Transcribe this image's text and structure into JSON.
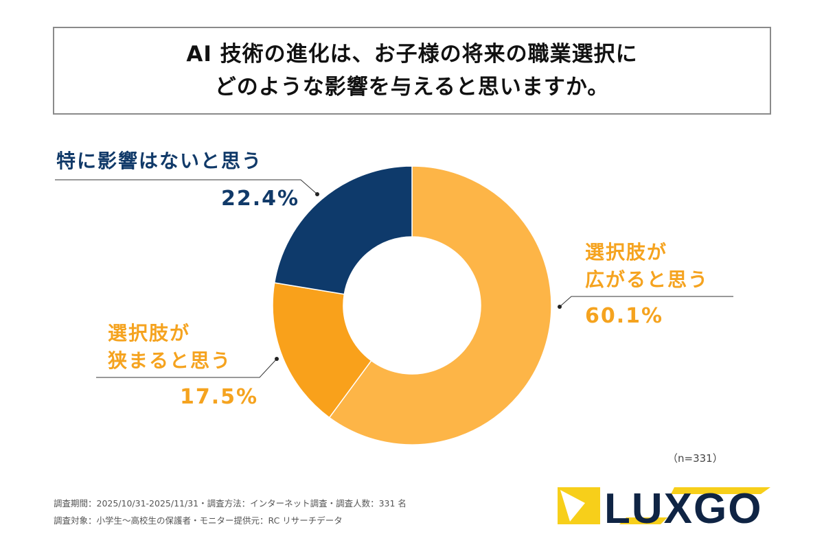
{
  "title": {
    "line1": "AI 技術の進化は、お子様の将来の職業選択に",
    "line2": "どのような影響を与えると思いますか。"
  },
  "chart_data": {
    "type": "pie",
    "donut": true,
    "slices": [
      {
        "label": "選択肢が広がると思う",
        "label_lines": [
          "選択肢が",
          "広がると思う"
        ],
        "value": 60.1,
        "display": "60.1%",
        "color": "#fdb547"
      },
      {
        "label": "選択肢が狭まると思う",
        "label_lines": [
          "選択肢が",
          "狭まると思う"
        ],
        "value": 17.5,
        "display": "17.5%",
        "color": "#f9a11b"
      },
      {
        "label": "特に影響はないと思う",
        "label_lines": [
          "特に影響はないと思う"
        ],
        "value": 22.4,
        "display": "22.4%",
        "color": "#0e3a6b"
      }
    ],
    "label_colors": {
      "orange": "#f5a31f",
      "navy": "#113a69"
    },
    "sample": "（n=331）"
  },
  "footer": {
    "line1": "調査期間：2025/10/31-2025/11/31・調査方法：インターネット調査・調査人数：331 名",
    "line2": "調査対象：小学生～高校生の保護者・モニター提供元：RC リサーチデータ"
  },
  "logo": {
    "text": "LUXGO",
    "colors": {
      "yellow": "#f7cf1a",
      "navy": "#0f2444"
    }
  }
}
